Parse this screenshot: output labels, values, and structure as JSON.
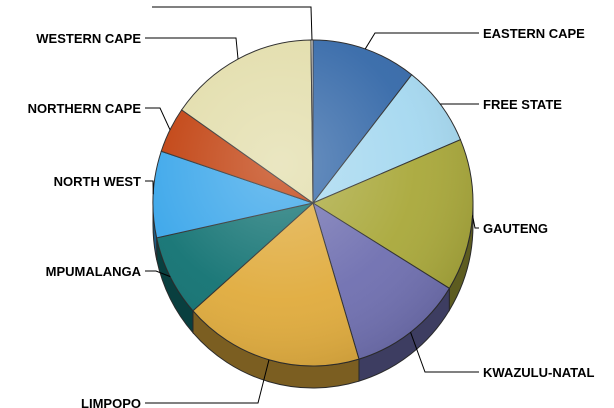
{
  "chart_data": {
    "type": "pie",
    "title": "",
    "slices": [
      {
        "label": "EASTERN CAPE",
        "value": 10.5,
        "color": "#3468a8"
      },
      {
        "label": "FREE STATE",
        "value": 8.0,
        "color": "#a5d8f0"
      },
      {
        "label": "GAUTENG",
        "value": 15.0,
        "color": "#a9a83a"
      },
      {
        "label": "KWAZULU-NATAL",
        "value": 11.5,
        "color": "#6f6fb0"
      },
      {
        "label": "LIMPOPO",
        "value": 18.0,
        "color": "#e0ab3c"
      },
      {
        "label": "MPUMALANGA",
        "value": 8.0,
        "color": "#117272"
      },
      {
        "label": "NORTH WEST",
        "value": 8.5,
        "color": "#3aa6ea"
      },
      {
        "label": "NORTHERN CAPE",
        "value": 4.5,
        "color": "#c03d0a"
      },
      {
        "label": "WESTERN CAPE",
        "value": 15.0,
        "color": "#e2ddaa"
      },
      {
        "label": "",
        "value": 0.2,
        "color": "#ffffff"
      }
    ],
    "legend": "none",
    "start": "top"
  }
}
